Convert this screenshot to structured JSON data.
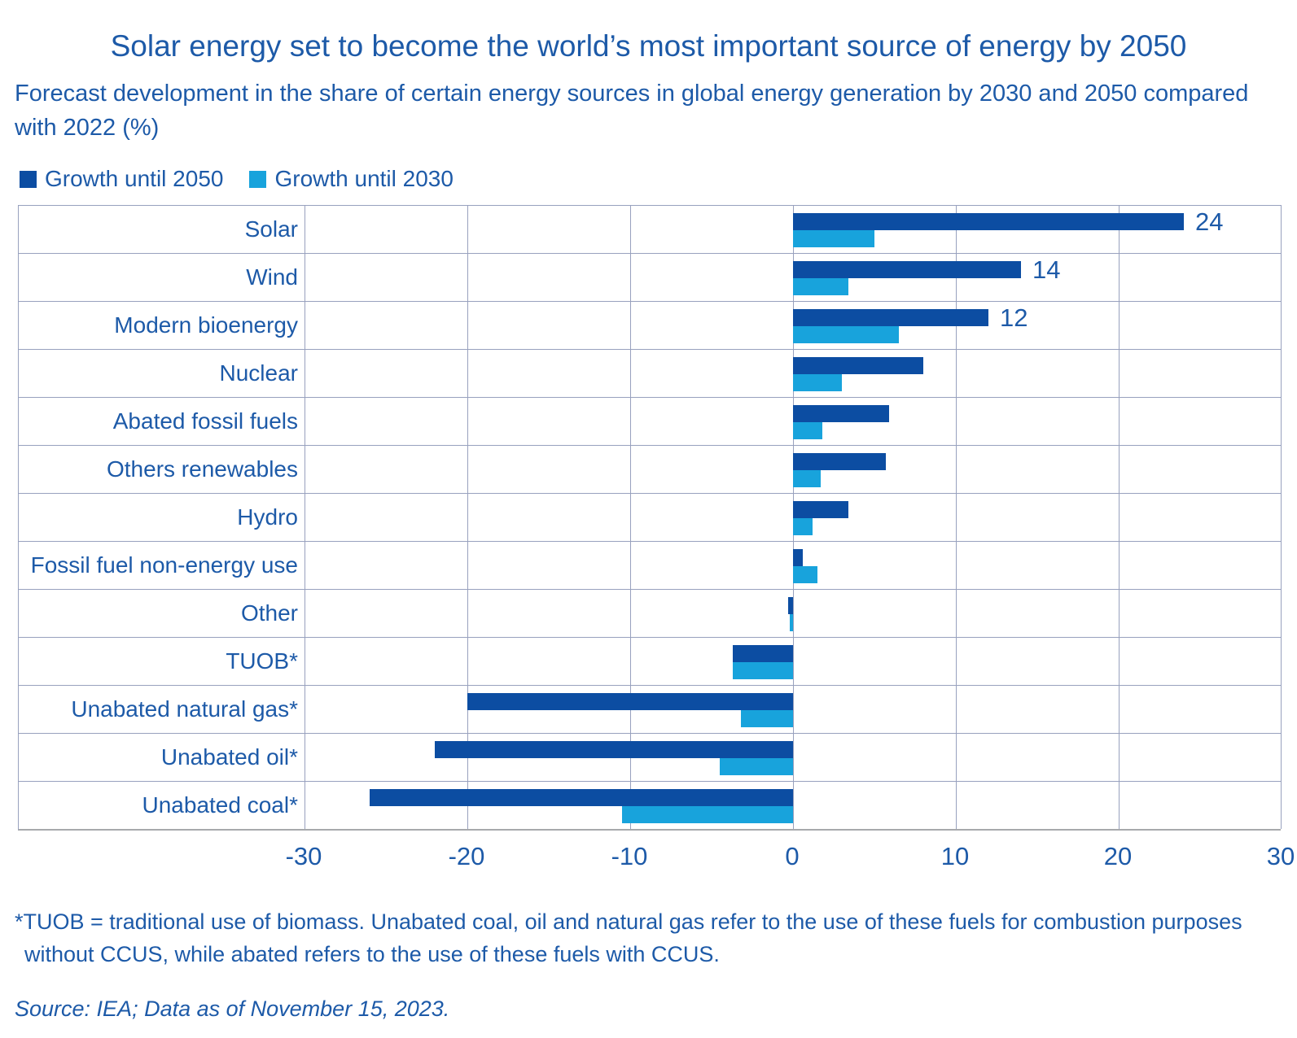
{
  "header": {
    "title": "Solar energy set to become the world’s most important source of energy by 2050",
    "subtitle": "Forecast development in the share of certain energy sources in global energy generation by 2030 and 2050 compared with 2022 (%)"
  },
  "legend": [
    {
      "label": "Growth until 2050",
      "color": "#0C4DA2"
    },
    {
      "label": "Growth until 2030",
      "color": "#18A3DC"
    }
  ],
  "chart_data": {
    "type": "bar",
    "orientation": "horizontal",
    "title": "Solar energy set to become the world’s most important source of energy by 2050",
    "subtitle": "Forecast development in the share of certain energy sources in global energy generation by 2030 and 2050 compared with 2022 (%)",
    "categories": [
      "Solar",
      "Wind",
      "Modern bioenergy",
      "Nuclear",
      "Abated fossil fuels",
      "Others renewables",
      "Hydro",
      "Fossil fuel non-energy use",
      "Other",
      "TUOB*",
      "Unabated natural gas*",
      "Unabated oil*",
      "Unabated coal*"
    ],
    "series": [
      {
        "name": "Growth until 2050",
        "color": "#0C4DA2",
        "values": [
          24,
          14,
          12,
          8,
          5.9,
          5.7,
          3.4,
          0.6,
          -0.3,
          -3.7,
          -20,
          -22,
          -26
        ],
        "data_labels": [
          "24",
          "14",
          "12",
          "",
          "",
          "",
          "",
          "",
          "",
          "",
          "",
          "",
          ""
        ]
      },
      {
        "name": "Growth until 2030",
        "color": "#18A3DC",
        "values": [
          5,
          3.4,
          6.5,
          3,
          1.8,
          1.7,
          1.2,
          1.5,
          -0.2,
          -3.7,
          -3.2,
          -4.5,
          -10.5
        ],
        "data_labels": [
          "",
          "",
          "",
          "",
          "",
          "",
          "",
          "",
          "",
          "",
          "",
          "",
          ""
        ]
      }
    ],
    "xlabel": "",
    "ylabel": "",
    "xlim": [
      -30,
      30
    ],
    "xticks": [
      -30,
      -20,
      -10,
      0,
      10,
      20,
      30
    ],
    "xtick_labels": [
      "-30",
      "-20",
      "-10",
      "0",
      "10",
      "20",
      "30"
    ],
    "grid": true,
    "legend_position": "top-left",
    "colors": {
      "bar_2050": "#0C4DA2",
      "bar_2030": "#18A3DC",
      "text": "#1D5AA8",
      "gridline": "#98A1BE",
      "axis_line": "#A7A9AC",
      "background": "#FFFFFF"
    }
  },
  "footnote": {
    "line1": "*TUOB = traditional use of biomass. Unabated coal, oil and natural gas refer to the use of these fuels for combustion purposes",
    "line2": "without CCUS, while abated refers to the use of these fuels with CCUS."
  },
  "source": "Source: IEA; Data as of November 15, 2023."
}
